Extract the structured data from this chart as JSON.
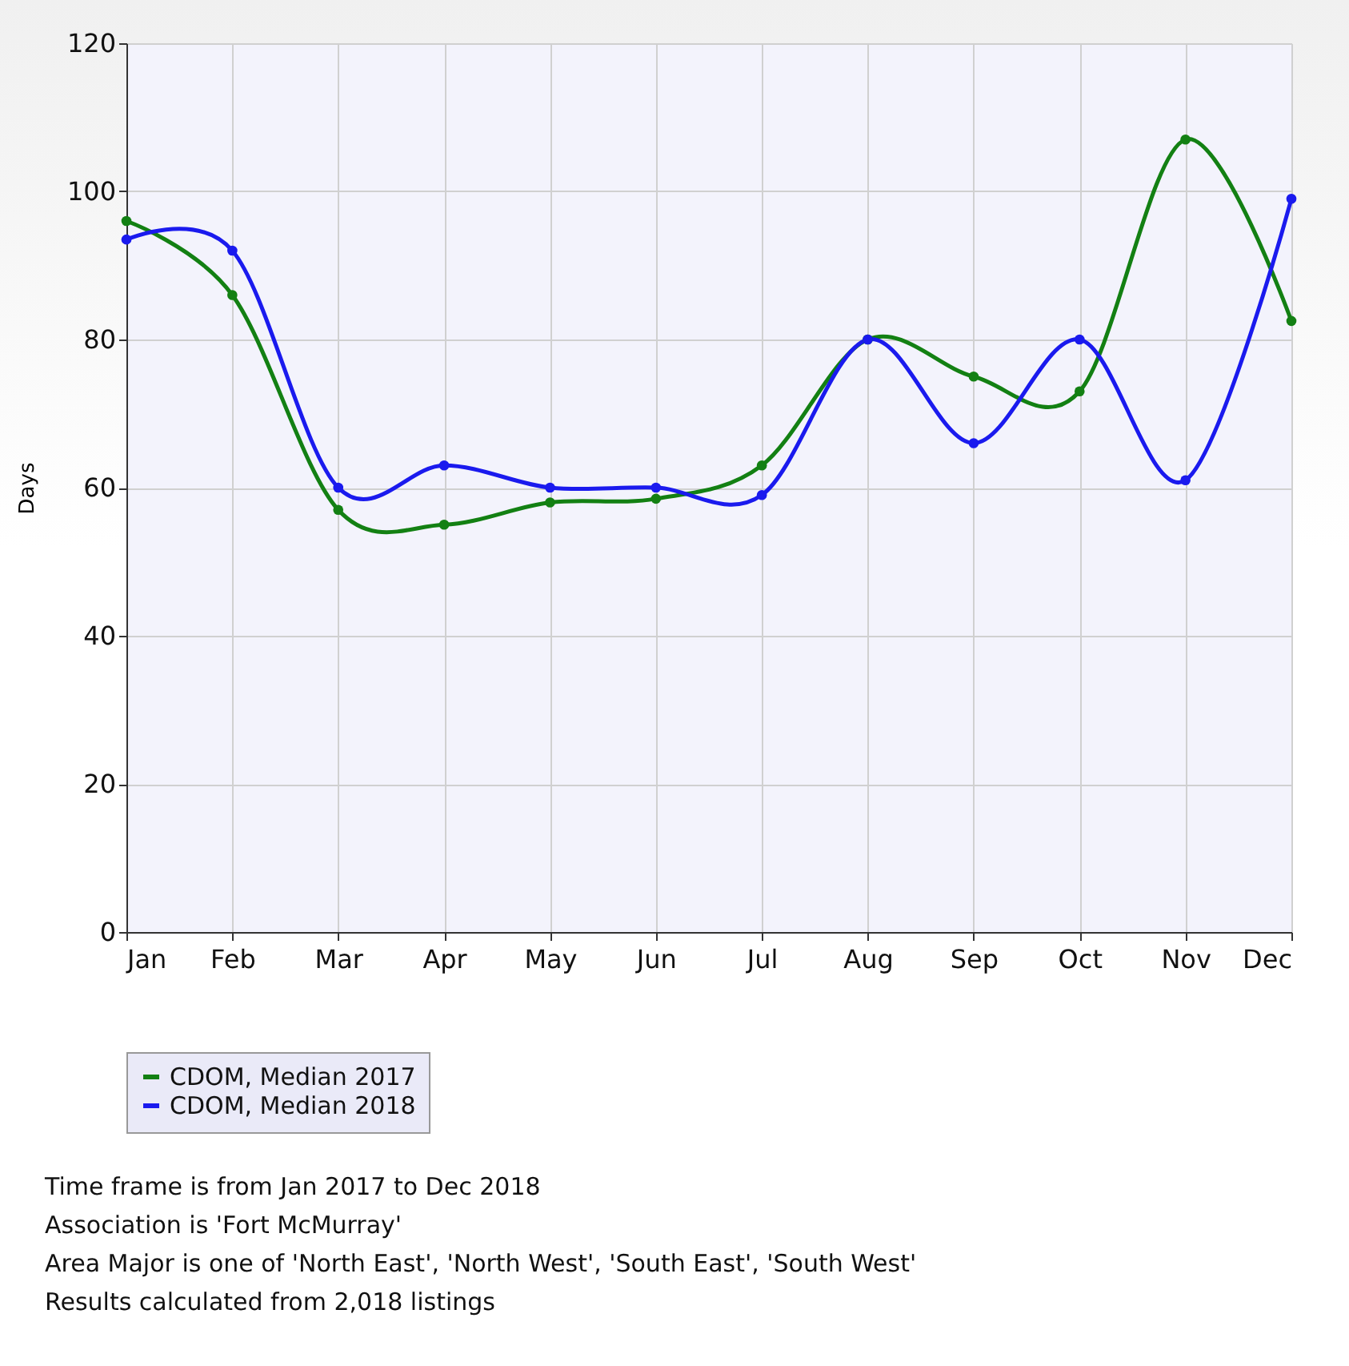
{
  "chart_data": {
    "type": "line",
    "ylabel": "Days",
    "categories": [
      "Jan",
      "Feb",
      "Mar",
      "Apr",
      "May",
      "Jun",
      "Jul",
      "Aug",
      "Sep",
      "Oct",
      "Nov",
      "Dec"
    ],
    "series": [
      {
        "name": "CDOM, Median 2017",
        "color": "#138013",
        "values": [
          96,
          86,
          57,
          55,
          58,
          58.5,
          63,
          80,
          75,
          73,
          107,
          82.5
        ]
      },
      {
        "name": "CDOM, Median 2018",
        "color": "#1a1aee",
        "values": [
          93.5,
          92,
          60,
          63,
          60,
          60,
          59,
          80,
          66,
          80,
          61,
          99
        ]
      }
    ],
    "ylim": [
      0,
      120
    ],
    "yticks": [
      0,
      20,
      40,
      60,
      80,
      100,
      120
    ],
    "grid": true,
    "legend": "bottom",
    "marker": "circle",
    "line_style": "solid",
    "annotations": [
      "Time frame is from Jan 2017 to Dec 2018",
      "Association is 'Fort McMurray'",
      "Area Major is one of 'North East', 'North West', 'South East', 'South West'",
      "Results calculated from 2,018 listings"
    ]
  }
}
